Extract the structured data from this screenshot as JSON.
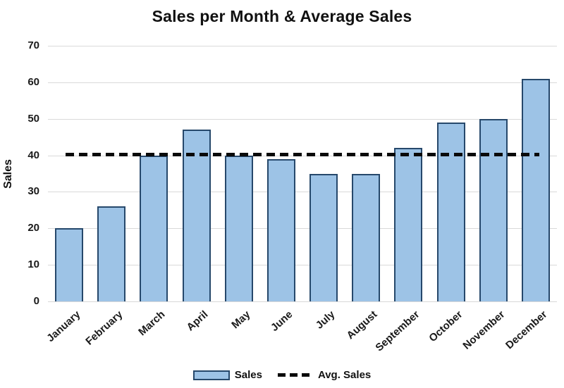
{
  "title": "Sales per Month & Average Sales",
  "y_axis": {
    "label": "Sales",
    "ticks": [
      0,
      10,
      20,
      30,
      40,
      50,
      60,
      70
    ],
    "max": 70
  },
  "legend": {
    "sales_label": "Sales",
    "avg_label": "Avg. Sales"
  },
  "colors": {
    "bar_fill": "#9dc3e6",
    "bar_border": "#26486b",
    "gridline": "#d9d9d9",
    "avg_line": "#0a0a0a",
    "text": "#111111"
  },
  "chart_data": {
    "type": "bar",
    "title": "Sales per Month & Average Sales",
    "xlabel": "",
    "ylabel": "Sales",
    "ylim": [
      0,
      70
    ],
    "grid": true,
    "legend_position": "bottom",
    "categories": [
      "January",
      "February",
      "March",
      "April",
      "May",
      "June",
      "July",
      "August",
      "September",
      "October",
      "November",
      "December"
    ],
    "series": [
      {
        "name": "Sales",
        "type": "bar",
        "values": [
          20,
          26,
          40,
          47,
          40,
          39,
          35,
          35,
          42,
          49,
          50,
          61
        ]
      },
      {
        "name": "Avg. Sales",
        "type": "line",
        "style": "dashed",
        "avg_value": 40.3
      }
    ]
  }
}
